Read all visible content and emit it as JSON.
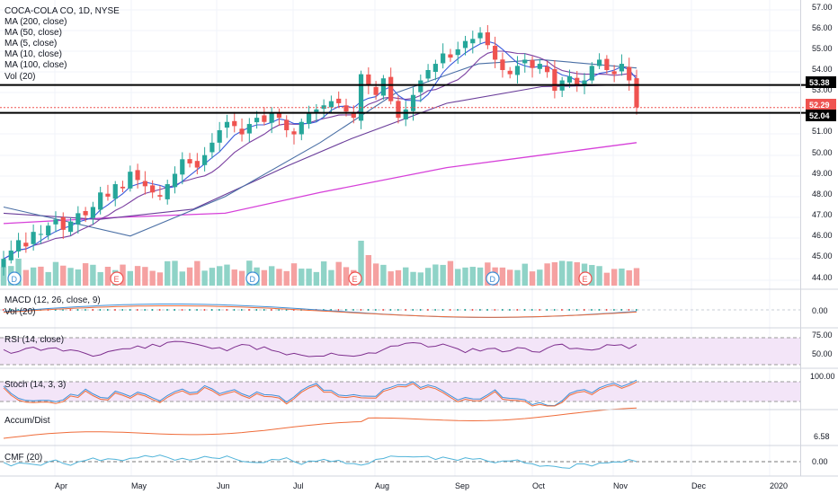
{
  "header": {
    "symbol_line": "COCA-COLA CO, 1D, NYSE",
    "studies": [
      "MA (200, close)",
      "MA (50, close)",
      "MA (5, close)",
      "MA (10, close)",
      "MA (100, close)",
      "Vol (20)"
    ]
  },
  "panes": {
    "macd_label": "MACD (12, 26, close, 9)",
    "vol_label": "Vol (20)",
    "rsi_label": "RSI (14, close)",
    "stoch_label": "Stoch (14, 3, 3)",
    "ad_label": "Accum/Dist",
    "cmf_label": "CMF (20)"
  },
  "price_axis": [
    "57.00",
    "56.00",
    "55.00",
    "54.00",
    "53.00",
    "51.00",
    "50.00",
    "49.00",
    "48.00",
    "47.00",
    "46.00",
    "45.00",
    "44.00"
  ],
  "price_tags": {
    "level_top": "53.38",
    "last": "52.29",
    "level_bottom": "52.04"
  },
  "pane_axis": {
    "macd": "0.00",
    "rsi_hi": "75.00",
    "rsi_mid": "50.00",
    "stoch": "100.00",
    "ad": "6.58",
    "cmf": "0.00"
  },
  "time_axis": [
    "Apr",
    "May",
    "Jun",
    "Jul",
    "Aug",
    "Sep",
    "Oct",
    "Nov",
    "Dec",
    "2020"
  ],
  "event_markers": [
    {
      "text": "D"
    },
    {
      "text": "E"
    },
    {
      "text": "D"
    },
    {
      "text": "E"
    },
    {
      "text": "D"
    },
    {
      "text": "E"
    }
  ],
  "colors": {
    "up": "#26a69a",
    "down": "#ef5350",
    "vol_up": "#8fd3c7",
    "vol_down": "#f5a1a1",
    "ma200": "#d640d9",
    "ma100": "#6a3d9a",
    "ma50": "#4a6fa5",
    "ma10": "#7b3fa0",
    "ma5": "#3b5bdb",
    "rsi": "#7e2f8e",
    "rsi_fill": "#f3e5f8",
    "stoch_k": "#3f8fd6",
    "stoch_d": "#ef6c3a",
    "ad": "#ef6c3a",
    "cmf": "#4fb3d9",
    "macd": "#3f8fd6",
    "signal": "#ef6c3a",
    "level": "#000000",
    "last": "#ef5350"
  },
  "chart_data": {
    "type": "candlestick",
    "title": "COCA-COLA CO, 1D, NYSE",
    "ylim": [
      43.5,
      57.2
    ],
    "x_range": [
      "2019-03-13",
      "2020-01-20"
    ],
    "candle_dates": [
      "2019-03-13",
      "2019-11-08"
    ],
    "close_path": [
      45.0,
      45.4,
      45.9,
      45.6,
      46.3,
      46.2,
      46.6,
      46.9,
      46.4,
      46.8,
      47.2,
      47.1,
      47.5,
      48.2,
      48.0,
      48.6,
      48.4,
      49.2,
      48.8,
      48.5,
      48.2,
      48.0,
      48.6,
      49.1,
      49.8,
      49.6,
      49.4,
      50.0,
      50.6,
      51.2,
      51.6,
      51.4,
      51.0,
      51.5,
      51.8,
      51.6,
      52.0,
      51.8,
      51.2,
      51.0,
      51.6,
      52.0,
      52.2,
      52.4,
      52.6,
      52.5,
      52.1,
      51.8,
      53.9,
      53.4,
      52.9,
      53.7,
      52.6,
      51.8,
      52.2,
      52.9,
      53.6,
      54.1,
      54.4,
      54.9,
      54.7,
      55.1,
      55.5,
      55.6,
      55.9,
      55.3,
      54.6,
      54.1,
      53.9,
      54.3,
      54.6,
      54.2,
      54.4,
      54.0,
      53.1,
      53.6,
      53.8,
      53.4,
      53.6,
      54.3,
      54.6,
      54.1,
      53.9,
      54.4,
      53.6,
      52.3
    ],
    "moving_averages": {
      "MA (200, close)": [
        [
          0,
          46.7
        ],
        [
          0.18,
          47.0
        ],
        [
          0.35,
          47.2
        ],
        [
          0.5,
          48.2
        ],
        [
          0.7,
          49.4
        ],
        [
          0.85,
          50.0
        ],
        [
          1,
          50.6
        ]
      ],
      "MA (100, close)": [
        [
          0,
          47.2
        ],
        [
          0.15,
          46.9
        ],
        [
          0.3,
          47.4
        ],
        [
          0.45,
          49.5
        ],
        [
          0.55,
          50.8
        ],
        [
          0.7,
          52.5
        ],
        [
          0.85,
          53.3
        ],
        [
          1,
          53.4
        ]
      ],
      "MA (50, close)": [
        [
          0,
          47.5
        ],
        [
          0.1,
          46.8
        ],
        [
          0.2,
          46.1
        ],
        [
          0.35,
          48.0
        ],
        [
          0.5,
          50.6
        ],
        [
          0.62,
          53.0
        ],
        [
          0.75,
          54.4
        ],
        [
          0.85,
          54.6
        ],
        [
          1,
          54.2
        ]
      ],
      "MA (10, close)": "follows close_path (10-day)",
      "MA (5, close)": "follows close_path (5-day)"
    },
    "horizontal_levels": [
      53.38,
      52.04
    ],
    "last_price": 52.29,
    "indicators": {
      "RSI (14, close)": {
        "levels": [
          70,
          30
        ]
      },
      "Stoch (14, 3, 3)": {
        "levels": [
          80,
          20
        ]
      },
      "CMF (20)": {
        "zero": 0.0
      },
      "MACD (12, 26, close, 9)": {
        "zero": 0.0
      }
    }
  }
}
